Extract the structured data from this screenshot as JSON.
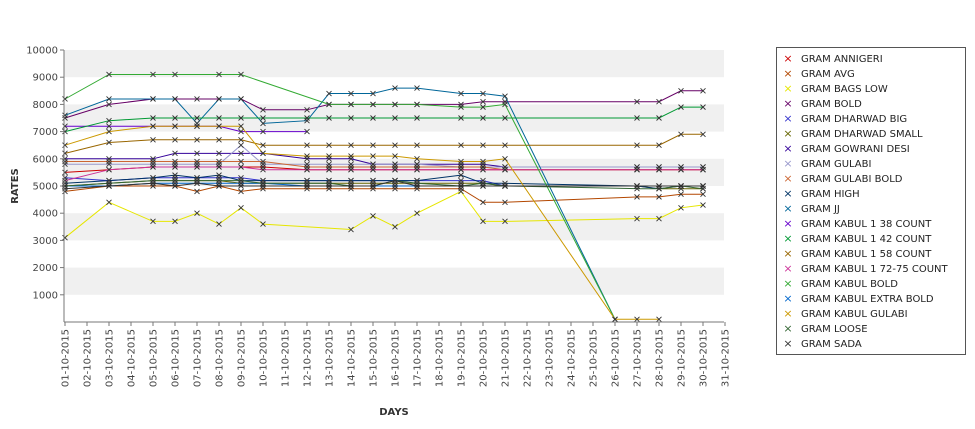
{
  "chart_data": {
    "type": "line",
    "xlabel": "DAYS",
    "ylabel": "RATES",
    "ylim": [
      0,
      10000
    ],
    "yticks": [
      1000,
      2000,
      3000,
      4000,
      5000,
      6000,
      7000,
      8000,
      9000,
      10000
    ],
    "grid": "alternating horizontal bands",
    "legend_position": "right",
    "categories": [
      "01-10-2015",
      "02-10-2015",
      "03-10-2015",
      "04-10-2015",
      "05-10-2015",
      "06-10-2015",
      "07-10-2015",
      "08-10-2015",
      "09-10-2015",
      "10-10-2015",
      "11-10-2015",
      "12-10-2015",
      "13-10-2015",
      "14-10-2015",
      "15-10-2015",
      "16-10-2015",
      "17-10-2015",
      "18-10-2015",
      "19-10-2015",
      "20-10-2015",
      "21-10-2015",
      "22-10-2015",
      "23-10-2015",
      "24-10-2015",
      "25-10-2015",
      "26-10-2015",
      "27-10-2015",
      "28-10-2015",
      "29-10-2015",
      "30-10-2015",
      "31-10-2015"
    ],
    "series": [
      {
        "name": "GRAM ANNIGERI",
        "color": "#cc0000",
        "values": [
          5500,
          null,
          5600,
          null,
          5700,
          5700,
          5700,
          5700,
          5700,
          5700,
          null,
          5600,
          5600,
          5600,
          5600,
          5600,
          5600,
          null,
          5600,
          5600,
          5600,
          null,
          null,
          null,
          null,
          null,
          5600,
          5600,
          5600,
          5600,
          null
        ]
      },
      {
        "name": "GRAM AVG",
        "color": "#b34700",
        "values": [
          4800,
          null,
          5000,
          null,
          5000,
          5000,
          4800,
          5000,
          4800,
          4900,
          null,
          4900,
          4900,
          4900,
          4900,
          4900,
          4900,
          null,
          4900,
          4400,
          4400,
          null,
          null,
          null,
          null,
          null,
          4600,
          4600,
          4700,
          4700,
          null
        ]
      },
      {
        "name": "GRAM BAGS LOW",
        "color": "#e6e600",
        "values": [
          3100,
          null,
          4400,
          null,
          3700,
          3700,
          4000,
          3600,
          4200,
          3600,
          null,
          null,
          null,
          3400,
          3900,
          3500,
          4000,
          null,
          4800,
          3700,
          3700,
          null,
          null,
          null,
          null,
          null,
          3800,
          3800,
          4200,
          4300,
          null
        ]
      },
      {
        "name": "GRAM BOLD",
        "color": "#660066",
        "values": [
          7500,
          null,
          8000,
          null,
          8200,
          8200,
          8200,
          8200,
          8200,
          7800,
          null,
          7800,
          8000,
          8000,
          8000,
          8000,
          8000,
          null,
          8000,
          8100,
          8100,
          null,
          null,
          null,
          null,
          null,
          8100,
          8100,
          8500,
          8500,
          null
        ]
      },
      {
        "name": "GRAM DHARWAD BIG",
        "color": "#3333cc",
        "values": [
          5300,
          null,
          5200,
          null,
          5300,
          5300,
          5300,
          5300,
          5300,
          5200,
          null,
          5200,
          5200,
          5200,
          5200,
          5200,
          5200,
          null,
          5200,
          5200,
          5000,
          null,
          null,
          null,
          null,
          null,
          5000,
          5000,
          5000,
          5000,
          null
        ]
      },
      {
        "name": "GRAM DHARWAD SMALL",
        "color": "#666600",
        "values": [
          5000,
          null,
          5100,
          null,
          5200,
          5200,
          5200,
          5200,
          5100,
          5100,
          null,
          5100,
          5100,
          5100,
          5100,
          5100,
          5100,
          null,
          5100,
          5100,
          5000,
          null,
          null,
          null,
          null,
          null,
          5000,
          4900,
          4900,
          4900,
          null
        ]
      },
      {
        "name": "GRAM GOWRANI DESI",
        "color": "#330099",
        "values": [
          6000,
          null,
          6000,
          null,
          6000,
          6200,
          6200,
          6200,
          6200,
          6200,
          null,
          6000,
          6000,
          6000,
          5800,
          5800,
          5800,
          null,
          5800,
          5800,
          5700,
          null,
          null,
          null,
          null,
          null,
          5700,
          5700,
          5700,
          5700,
          null
        ]
      },
      {
        "name": "GRAM GULABI",
        "color": "#9999cc",
        "values": [
          5800,
          null,
          5800,
          null,
          5800,
          5800,
          5800,
          5800,
          6500,
          5800,
          null,
          5800,
          5800,
          5800,
          5800,
          5800,
          5800,
          null,
          5700,
          5700,
          5700,
          null,
          null,
          null,
          null,
          null,
          5700,
          5700,
          5700,
          5700,
          null
        ]
      },
      {
        "name": "GRAM GULABI BOLD",
        "color": "#cc6633",
        "values": [
          5900,
          null,
          5900,
          null,
          5900,
          5900,
          5900,
          5900,
          5900,
          5900,
          null,
          5700,
          5700,
          5700,
          5700,
          5700,
          5700,
          null,
          5700,
          5700,
          5600,
          null,
          null,
          null,
          null,
          null,
          5600,
          5600,
          5600,
          5600,
          null
        ]
      },
      {
        "name": "GRAM HIGH",
        "color": "#003366",
        "values": [
          5100,
          null,
          5200,
          null,
          5300,
          5400,
          5300,
          5400,
          5200,
          5200,
          null,
          5200,
          5200,
          5200,
          5200,
          5200,
          5200,
          null,
          5400,
          5100,
          5100,
          null,
          null,
          null,
          null,
          null,
          5000,
          4900,
          5000,
          5000,
          null
        ]
      },
      {
        "name": "GRAM JJ",
        "color": "#006699",
        "values": [
          7600,
          null,
          8200,
          null,
          8200,
          8200,
          7300,
          8200,
          8200,
          7300,
          null,
          7400,
          8400,
          8400,
          8400,
          8600,
          8600,
          null,
          8400,
          8400,
          8300,
          null,
          null,
          null,
          null,
          100,
          null,
          null,
          null,
          null,
          null
        ]
      },
      {
        "name": "GRAM KABUL 1 38 COUNT",
        "color": "#6600cc",
        "values": [
          7200,
          null,
          7200,
          null,
          7200,
          7200,
          7200,
          7200,
          7000,
          7000,
          null,
          7000,
          null,
          null,
          null,
          null,
          null,
          null,
          null,
          null,
          null,
          null,
          null,
          null,
          null,
          null,
          null,
          null,
          null,
          null,
          null
        ]
      },
      {
        "name": "GRAM KABUL 1 42 COUNT",
        "color": "#009933",
        "values": [
          7000,
          null,
          7400,
          null,
          7500,
          7500,
          7500,
          7500,
          7500,
          7500,
          null,
          7500,
          7500,
          7500,
          7500,
          7500,
          7500,
          null,
          7500,
          7500,
          7500,
          null,
          null,
          null,
          null,
          null,
          7500,
          7500,
          7900,
          7900,
          null
        ]
      },
      {
        "name": "GRAM KABUL 1 58 COUNT",
        "color": "#996600",
        "values": [
          6200,
          null,
          6600,
          null,
          6700,
          6700,
          6700,
          6700,
          6700,
          6500,
          null,
          6500,
          6500,
          6500,
          6500,
          6500,
          6500,
          null,
          6500,
          6500,
          6500,
          null,
          null,
          null,
          null,
          null,
          6500,
          6500,
          6900,
          6900,
          null
        ]
      },
      {
        "name": "GRAM KABUL 1 72-75 COUNT",
        "color": "#cc3399",
        "values": [
          5200,
          null,
          5600,
          null,
          5700,
          5700,
          5700,
          5700,
          5700,
          5600,
          null,
          5600,
          5600,
          5600,
          5600,
          5600,
          5600,
          null,
          5600,
          5600,
          5600,
          null,
          null,
          null,
          null,
          null,
          5600,
          5600,
          5600,
          5600,
          null
        ]
      },
      {
        "name": "GRAM KABUL BOLD",
        "color": "#33aa33",
        "values": [
          8200,
          null,
          9100,
          null,
          9100,
          9100,
          null,
          9100,
          9100,
          null,
          null,
          null,
          8000,
          8000,
          8000,
          8000,
          8000,
          null,
          7900,
          7900,
          8000,
          null,
          null,
          null,
          null,
          100,
          null,
          null,
          null,
          null,
          null
        ]
      },
      {
        "name": "GRAM KABUL EXTRA BOLD",
        "color": "#0066cc",
        "values": [
          5000,
          null,
          5000,
          null,
          5100,
          5100,
          5100,
          5100,
          5100,
          5100,
          null,
          5000,
          5000,
          5000,
          5000,
          5000,
          5000,
          null,
          5000,
          5000,
          5000,
          null,
          null,
          null,
          null,
          null,
          5000,
          5000,
          5000,
          5000,
          null
        ]
      },
      {
        "name": "GRAM KABUL GULABI",
        "color": "#cc9900",
        "values": [
          6500,
          null,
          7000,
          null,
          7200,
          7200,
          7200,
          7200,
          7200,
          6200,
          null,
          6100,
          6100,
          6100,
          6100,
          6100,
          6000,
          null,
          5900,
          5900,
          6000,
          null,
          null,
          null,
          null,
          100,
          100,
          100,
          null,
          null,
          null
        ]
      },
      {
        "name": "GRAM LOOSE",
        "color": "#336633",
        "values": [
          5000,
          null,
          5100,
          null,
          5200,
          5200,
          5200,
          5200,
          5200,
          5100,
          null,
          5100,
          5100,
          5000,
          5000,
          5200,
          5100,
          null,
          5000,
          5100,
          5000,
          null,
          null,
          null,
          null,
          null,
          4900,
          4900,
          5000,
          4900,
          null
        ]
      },
      {
        "name": "GRAM SADA",
        "color": "#333333",
        "values": [
          4900,
          null,
          5000,
          null,
          5100,
          5000,
          5100,
          5000,
          5000,
          5000,
          null,
          5000,
          5000,
          5000,
          5000,
          5200,
          5000,
          null,
          5000,
          5000,
          5000,
          null,
          null,
          null,
          null,
          null,
          5000,
          5000,
          5000,
          5000,
          null
        ]
      }
    ]
  }
}
